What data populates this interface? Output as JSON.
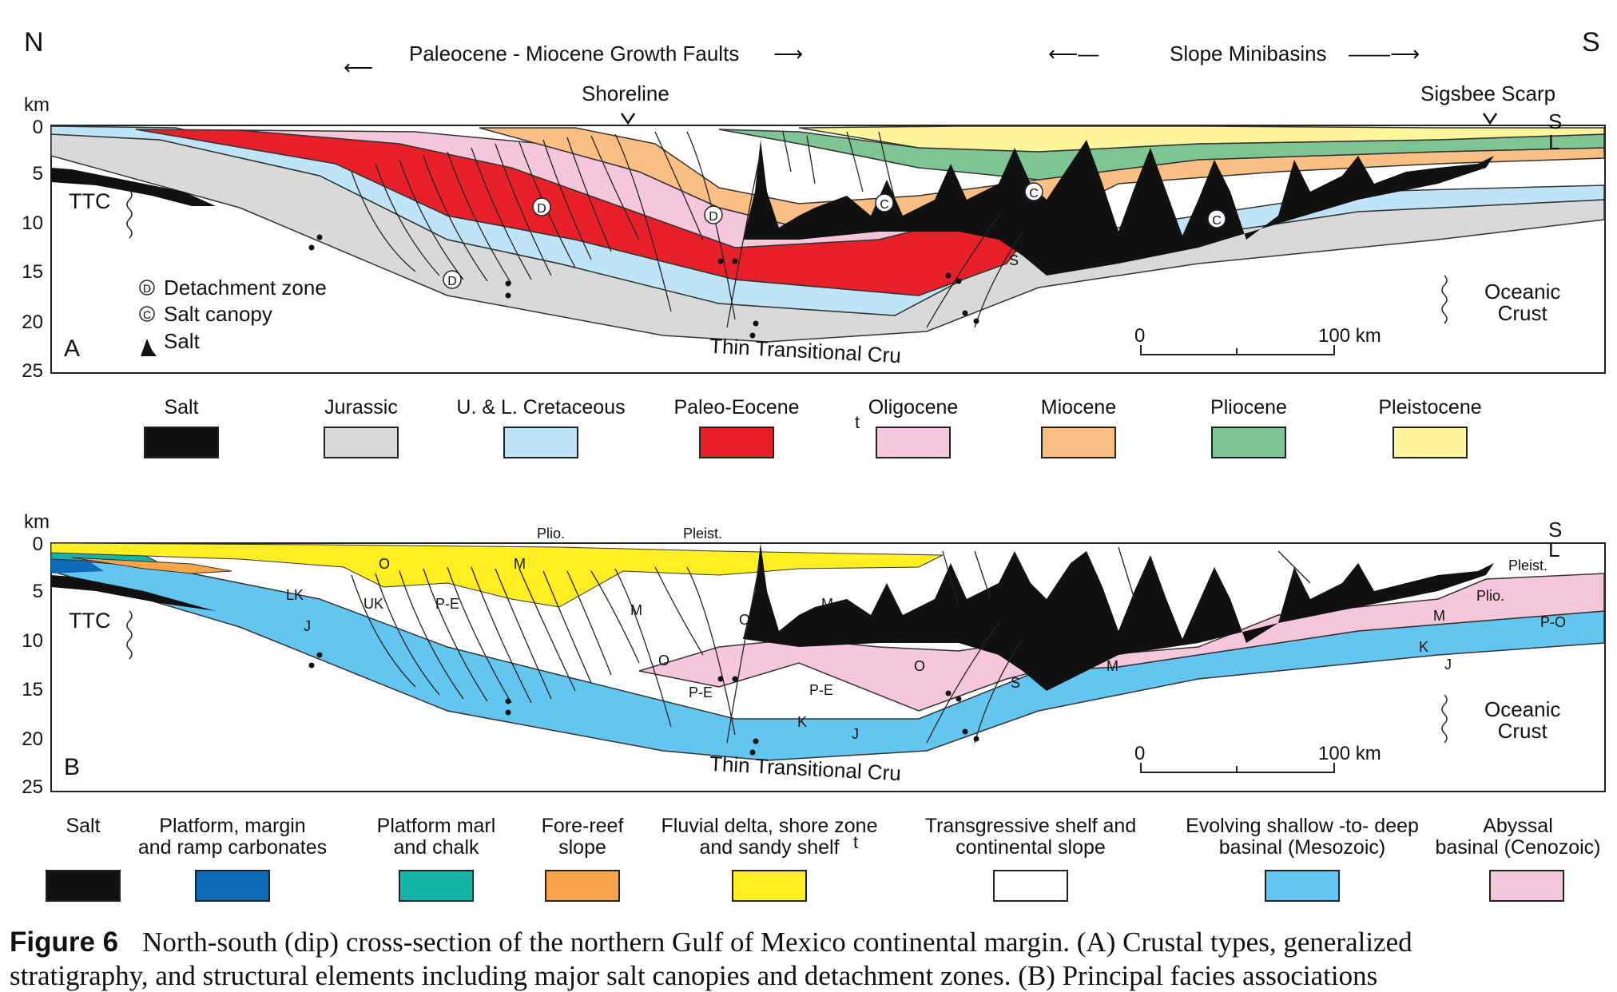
{
  "compass": {
    "north": "N",
    "south": "S"
  },
  "panel_a": {
    "headers": {
      "growth_faults": "Paleocene - Miocene Growth Faults",
      "minibasins": "Slope Minibasins",
      "shoreline": "Shoreline",
      "sigsbee": "Sigsbee Scarp"
    },
    "axis_unit": "km",
    "ticks": [
      "0",
      "5",
      "10",
      "15",
      "20",
      "25"
    ],
    "sea_level": [
      "S",
      "L"
    ],
    "panel_letter": "A",
    "ttc": "TTC",
    "oceanic_crust": [
      "Oceanic",
      "Crust"
    ],
    "thin_crust": "Thin Transitional Cru",
    "scale": {
      "start": "0",
      "end": "100 km"
    },
    "markers": {
      "detachment_symbol": "D",
      "canopy_symbol": "C"
    },
    "key": {
      "detachment": "Detachment zone",
      "canopy": "Salt canopy",
      "salt": "Salt"
    },
    "s_label": "S"
  },
  "legend_a": [
    {
      "label": "Salt",
      "color": "#111111"
    },
    {
      "label": "Jurassic",
      "color": "#d9d9d9"
    },
    {
      "label": "U. & L. Cretaceous",
      "color": "#bfe3f7"
    },
    {
      "label": "Paleo-Eocene",
      "color": "#e8202a"
    },
    {
      "label": "Oligocene",
      "color": "#f6c6da"
    },
    {
      "label": "Miocene",
      "color": "#fbbf83"
    },
    {
      "label": "Pliocene",
      "color": "#7dc693"
    },
    {
      "label": "Pleistocene",
      "color": "#fff59d"
    }
  ],
  "legend_a_stray": "t",
  "panel_b": {
    "axis_unit": "km",
    "ticks": [
      "0",
      "5",
      "10",
      "15",
      "20",
      "25"
    ],
    "sea_level": [
      "S",
      "L"
    ],
    "panel_letter": "B",
    "ttc": "TTC",
    "oceanic_crust": [
      "Oceanic",
      "Crust"
    ],
    "thin_crust": "Thin Transitional Cru",
    "scale": {
      "start": "0",
      "end": "100 km"
    },
    "unit_labels": {
      "plio1": "Plio.",
      "pleist1": "Pleist.",
      "o1": "O",
      "m1": "M",
      "lk": "LK",
      "uk": "UK",
      "pe1": "P-E",
      "j1": "J",
      "m2": "M",
      "o2": "O",
      "m3": "M",
      "o3": "O",
      "pe2": "P-E",
      "pe3": "P-E",
      "m4": "M",
      "o4": "O",
      "k": "K",
      "j2": "J",
      "s": "S",
      "m5": "M",
      "pleist2": "Pleist.",
      "plio2": "Plio.",
      "m6": "M",
      "po": "P-O",
      "k2": "K",
      "j3": "J"
    }
  },
  "legend_b": [
    {
      "label": [
        "Salt"
      ],
      "color": "#111111"
    },
    {
      "label": [
        "Platform, margin",
        "and ramp carbonates"
      ],
      "color": "#0d6bb5"
    },
    {
      "label": [
        "Platform marl",
        "and chalk"
      ],
      "color": "#16b3aa"
    },
    {
      "label": [
        "Fore-reef",
        "slope"
      ],
      "color": "#f7a44a"
    },
    {
      "label": [
        "Fluvial delta, shore zone",
        "and sandy shelf"
      ],
      "color": "#ffee22"
    },
    {
      "label": [
        "Transgressive shelf and",
        "continental slope"
      ],
      "color": "#ffffff"
    },
    {
      "label": [
        "Evolving shallow -to- deep",
        "basinal (Mesozoic)"
      ],
      "color": "#62c6f0"
    },
    {
      "label": [
        "Abyssal",
        "basinal (Cenozoic)"
      ],
      "color": "#f6c6da"
    }
  ],
  "legend_b_stray": "t",
  "caption": {
    "figure": "Figure 6",
    "line1": "North-south (dip) cross-section of the northern Gulf of Mexico continental margin. (A) Crustal types, generalized",
    "line2": "stratigraphy, and structural elements including major salt canopies and detachment zones. (B) Principal facies associations"
  }
}
